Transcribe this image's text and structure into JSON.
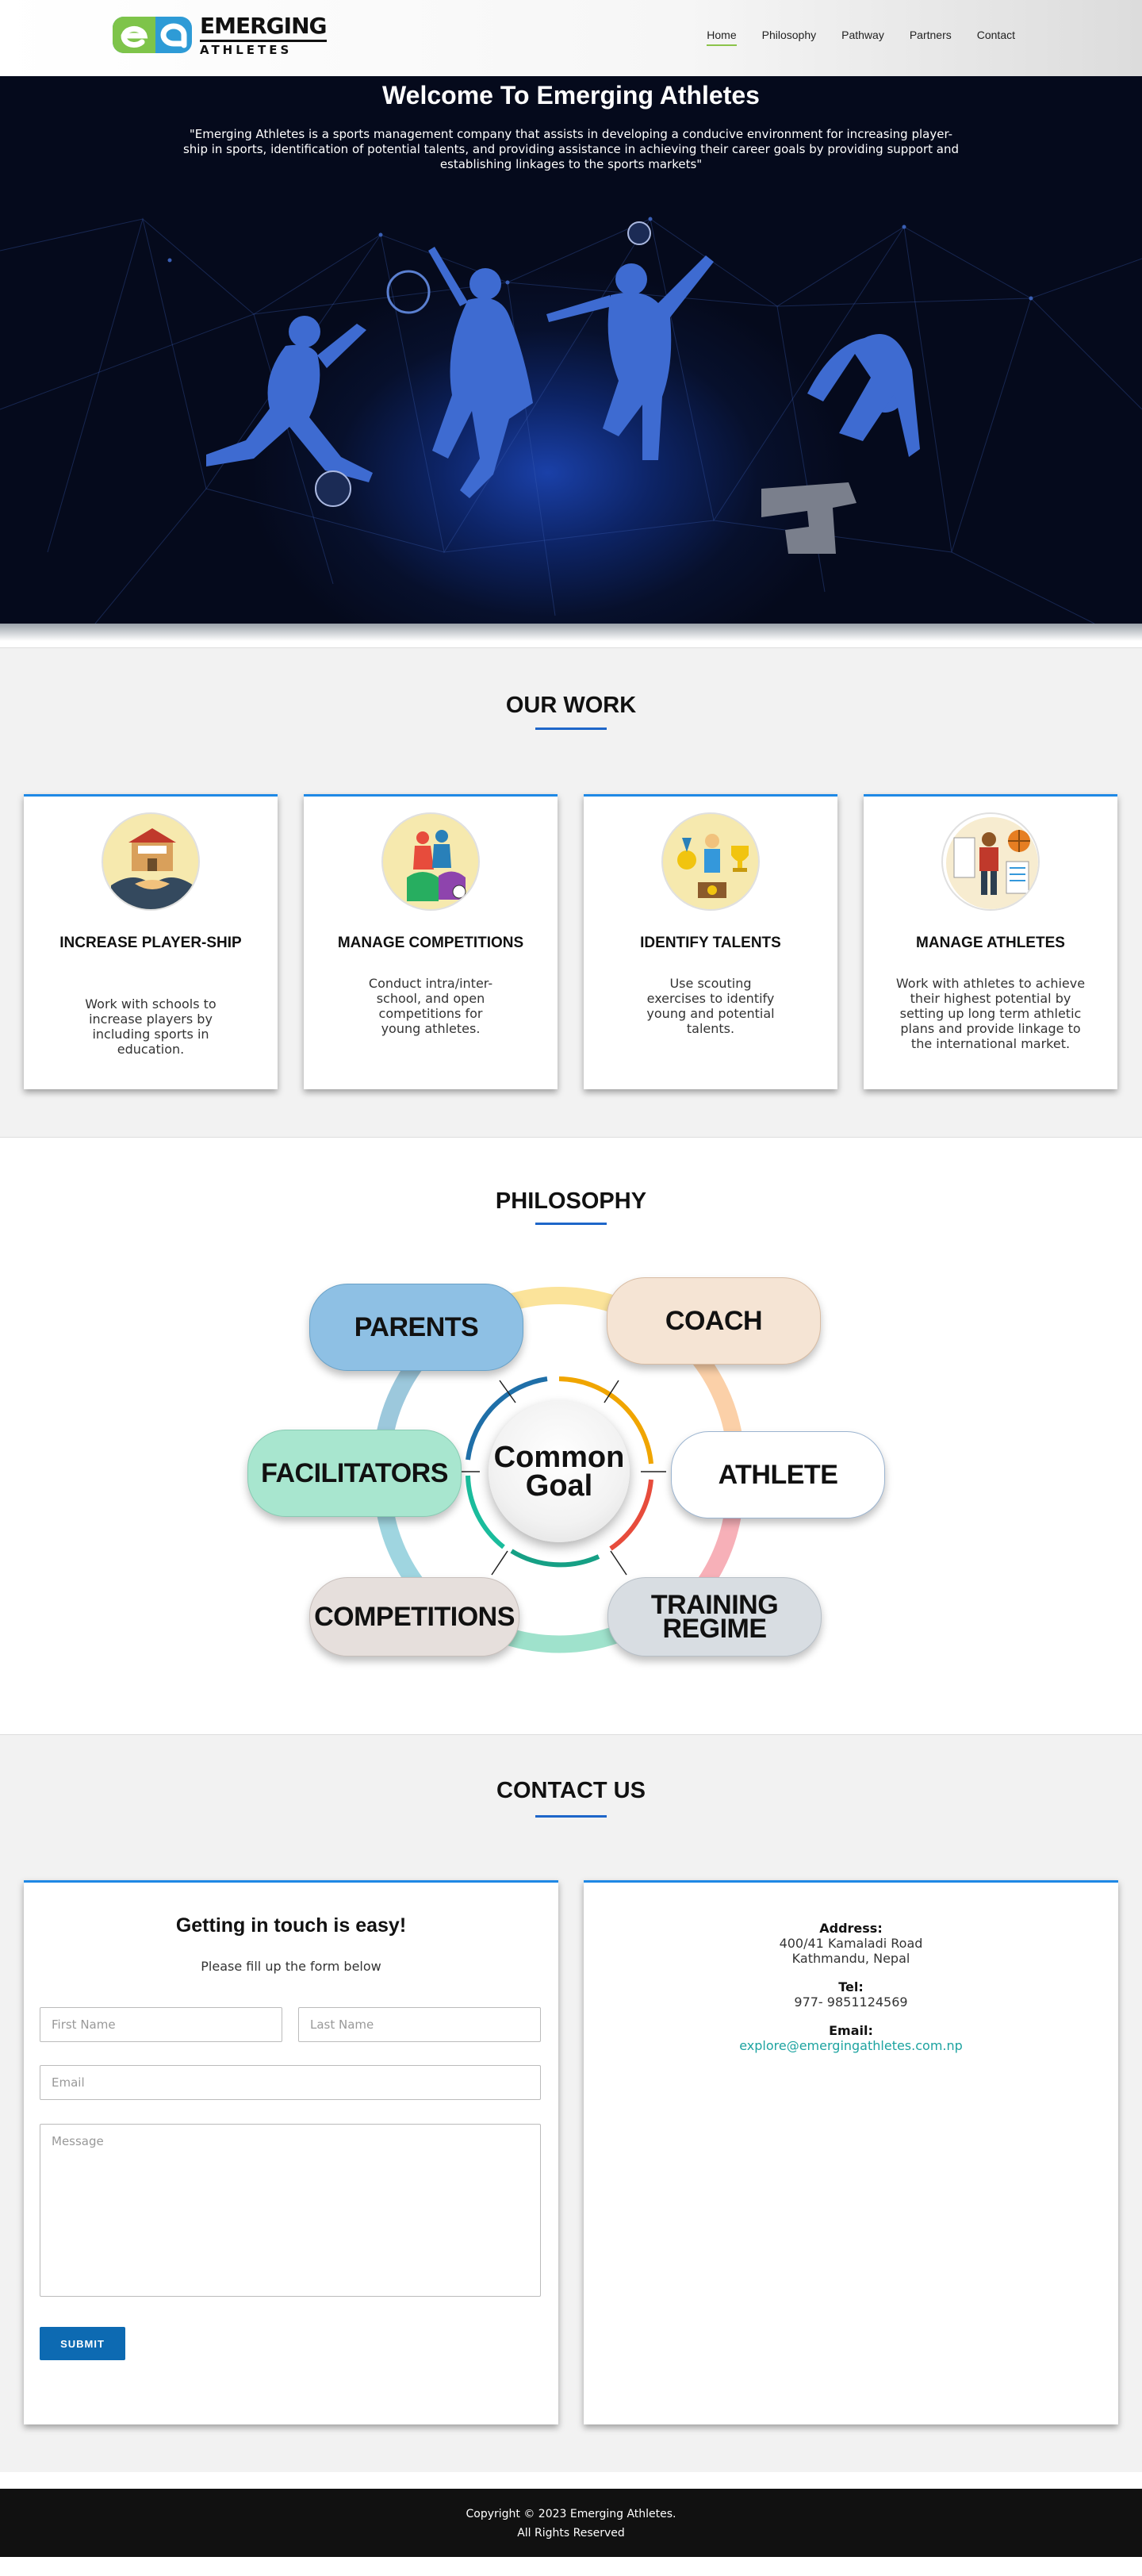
{
  "header": {
    "logo_word1": "EMERGING",
    "logo_word2": "ATHLETES",
    "nav": [
      {
        "label": "Home",
        "active": true
      },
      {
        "label": "Philosophy"
      },
      {
        "label": "Pathway"
      },
      {
        "label": "Partners"
      },
      {
        "label": "Contact"
      }
    ]
  },
  "hero": {
    "title": "Welcome To Emerging Athletes",
    "subtitle": "\"Emerging Athletes is a sports management company that assists in developing a conducive environment for increasing player-ship in sports, identification of potential talents, and providing assistance in achieving their career goals by providing support and establishing linkages to the sports markets\""
  },
  "work": {
    "title": "OUR WORK",
    "cards": [
      {
        "title": "INCREASE PLAYER-SHIP",
        "desc": "Work with schools to increase players by including sports in education.",
        "icon": "school-handshake-icon"
      },
      {
        "title": "MANAGE COMPETITIONS",
        "desc": "Conduct intra/inter-school, and open competitions for young athletes.",
        "icon": "competition-players-icon"
      },
      {
        "title": "IDENTIFY TALENTS",
        "desc": "Use scouting exercises to identify young and potential talents.",
        "icon": "medals-trophy-icon"
      },
      {
        "title": "MANAGE ATHLETES",
        "desc": "Work with athletes to achieve their highest potential by setting up long term athletic plans and provide linkage to the international market.",
        "icon": "athlete-plan-icon"
      }
    ]
  },
  "philosophy": {
    "title": "PHILOSOPHY",
    "center_line1": "Common",
    "center_line2": "Goal",
    "items": {
      "parents": "PARENTS",
      "coach": "COACH",
      "facilitators": "FACILITATORS",
      "athlete": "ATHLETE",
      "competitions": "COMPETITIONS",
      "training_line1": "TRAINING",
      "training_line2": "REGIME"
    },
    "colors": {
      "parents": "#8ec0e4",
      "coach": "#f5e4d4",
      "facilitators": "#a8e6cf",
      "athlete": "#ffffff",
      "competitions": "#e6dfdc",
      "training": "#d8dde2"
    }
  },
  "contact": {
    "title": "CONTACT US",
    "form_title": "Getting in touch is easy!",
    "form_subtitle": "Please fill up the form below",
    "first_name_placeholder": "First Name",
    "last_name_placeholder": "Last Name",
    "email_placeholder": "Email",
    "message_placeholder": "Message",
    "submit_label": "SUBMIT",
    "address_label": "Address:",
    "address_line1": "400/41 Kamaladi Road",
    "address_line2": "Kathmandu, Nepal",
    "tel_label": "Tel:",
    "tel_value": "977- 9851124569",
    "email_label": "Email:",
    "email_value": "explore@emergingathletes.com.np"
  },
  "footer": {
    "line1": "Copyright © 2023 Emerging Athletes.",
    "line2": "All Rights Reserved"
  },
  "colors": {
    "accent_blue": "#1e66c9",
    "card_border": "#1e88e5",
    "submit_bg": "#0d6ab2",
    "nav_active": "#8bc34a",
    "email_link": "#1ca3a0",
    "footer_bg": "#111111"
  }
}
